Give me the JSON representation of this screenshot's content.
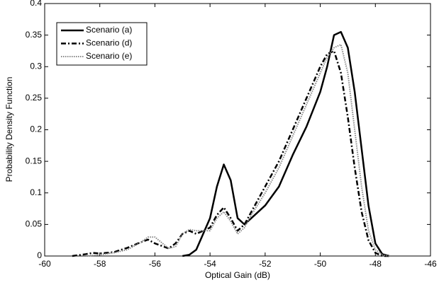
{
  "chart_data": {
    "type": "line",
    "xlabel": "Optical Gain (dB)",
    "ylabel": "Probability Density Function",
    "x": [
      -59,
      -58.5,
      -58.25,
      -58,
      -57.5,
      -57,
      -56.5,
      -56.25,
      -56,
      -55.5,
      -55.25,
      -55,
      -54.75,
      -54.5,
      -54,
      -53.75,
      -53.5,
      -53.25,
      -53,
      -52.75,
      -52.5,
      -52,
      -51.5,
      -51,
      -50.5,
      -50,
      -49.75,
      -49.5,
      -49.25,
      -49,
      -48.75,
      -48.5,
      -48.25,
      -48,
      -47.75,
      -47.5
    ],
    "series": [
      {
        "name": "Scenario (a)",
        "color": "#000000",
        "line_style": "solid",
        "values": [
          null,
          null,
          null,
          null,
          null,
          null,
          null,
          null,
          null,
          null,
          null,
          0,
          0.002,
          0.01,
          0.06,
          0.11,
          0.145,
          0.12,
          0.06,
          0.05,
          0.06,
          0.08,
          0.11,
          0.16,
          0.205,
          0.26,
          0.3,
          0.35,
          0.355,
          0.33,
          0.26,
          0.17,
          0.08,
          0.02,
          0.003,
          0
        ]
      },
      {
        "name": "Scenario (d)",
        "color": "#000000",
        "line_style": "dashdot",
        "values": [
          0,
          0.003,
          0.005,
          0.004,
          0.006,
          0.013,
          0.022,
          0.026,
          0.02,
          0.012,
          0.02,
          0.035,
          0.04,
          0.035,
          0.045,
          0.065,
          0.077,
          0.06,
          0.04,
          0.05,
          0.07,
          0.11,
          0.15,
          0.2,
          0.25,
          0.3,
          0.32,
          0.325,
          0.29,
          0.22,
          0.14,
          0.07,
          0.025,
          0.005,
          0,
          0
        ]
      },
      {
        "name": "Scenario (e)",
        "color": "#888888",
        "line_style": "dotted",
        "values": [
          null,
          0,
          0.001,
          0.002,
          0.005,
          0.01,
          0.022,
          0.03,
          0.03,
          0.012,
          0.015,
          0.035,
          0.042,
          0.04,
          0.04,
          0.06,
          0.07,
          0.055,
          0.035,
          0.045,
          0.065,
          0.1,
          0.14,
          0.19,
          0.24,
          0.29,
          0.315,
          0.33,
          0.335,
          0.29,
          0.2,
          0.11,
          0.04,
          0.01,
          0.002,
          0
        ]
      }
    ],
    "xlim": [
      -60,
      -46
    ],
    "xticks": [
      -60,
      -58,
      -56,
      -54,
      -52,
      -50,
      -48,
      -46
    ],
    "ylim": [
      0,
      0.4
    ],
    "yticks": [
      0,
      0.05,
      0.1,
      0.15,
      0.2,
      0.25,
      0.3,
      0.35,
      0.4
    ],
    "grid": false,
    "legend": "upper-left"
  }
}
